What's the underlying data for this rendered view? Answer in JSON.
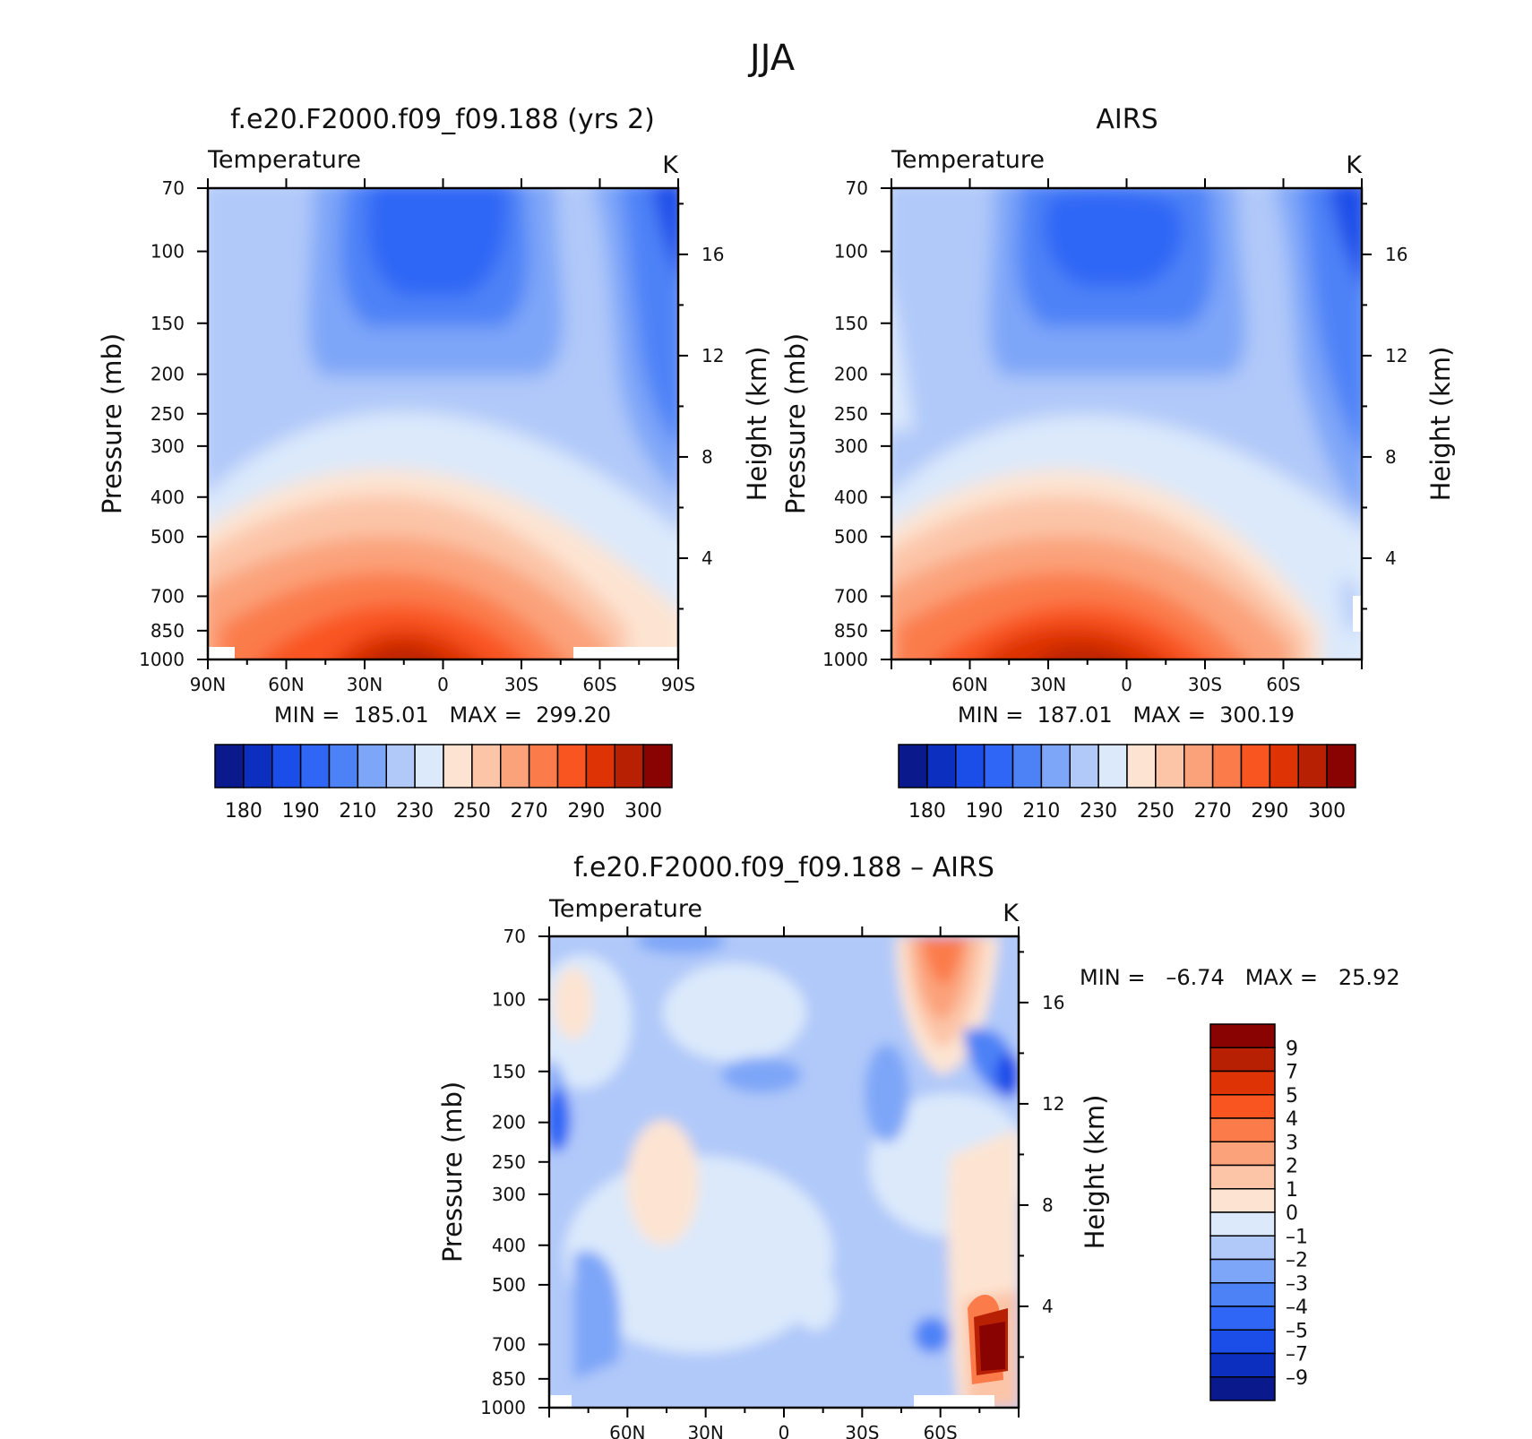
{
  "figure": {
    "title": "JJA"
  },
  "chart_data": [
    {
      "type": "heatmap",
      "title": "f.e20.F2000.f09_f09.188 (yrs 2)",
      "variable": "Temperature",
      "units": "K",
      "ylabel": "Pressure (mb)",
      "y2label": "Height (km)",
      "xlim": [
        90,
        -90
      ],
      "x_ticks": [
        90,
        60,
        30,
        0,
        -30,
        -60,
        -90
      ],
      "x_ticklabels": [
        "90N",
        "60N",
        "30N",
        "0",
        "30S",
        "60S",
        "90S"
      ],
      "y_ticks": [
        70,
        100,
        150,
        200,
        250,
        300,
        400,
        500,
        700,
        850,
        1000
      ],
      "y_ticklabels": [
        "70",
        "100",
        "150",
        "200",
        "250",
        "300",
        "400",
        "500",
        "700",
        "850",
        "1000"
      ],
      "y2_ticks": [
        4,
        8,
        12,
        16
      ],
      "y2_ticklabels": [
        "4",
        "8",
        "12",
        "16"
      ],
      "stats": "MIN =  185.01   MAX =  299.20",
      "min": 185.01,
      "max": 299.2,
      "colorbar_labels": [
        "180",
        "190",
        "210",
        "230",
        "250",
        "270",
        "290",
        "300"
      ],
      "colorbar_colors": [
        "#0a1a8c",
        "#0d2fc0",
        "#1b4de8",
        "#2f66f5",
        "#4d82f7",
        "#7ea6f8",
        "#b1c9f9",
        "#dbe9fb",
        "#fde4d2",
        "#fcc5a8",
        "#fba27a",
        "#fb7b4b",
        "#f95520",
        "#dd3305",
        "#b82004",
        "#8a0303"
      ]
    },
    {
      "type": "heatmap",
      "title": "AIRS",
      "variable": "Temperature",
      "units": "K",
      "ylabel": "Pressure (mb)",
      "y2label": "Height (km)",
      "xlim": [
        90,
        -90
      ],
      "x_ticks": [
        60,
        30,
        0,
        -30,
        -60
      ],
      "x_ticklabels": [
        "60N",
        "30N",
        "0",
        "30S",
        "60S"
      ],
      "y_ticks": [
        70,
        100,
        150,
        200,
        250,
        300,
        400,
        500,
        700,
        850,
        1000
      ],
      "y_ticklabels": [
        "70",
        "100",
        "150",
        "200",
        "250",
        "300",
        "400",
        "500",
        "700",
        "850",
        "1000"
      ],
      "y2_ticks": [
        4,
        8,
        12,
        16
      ],
      "y2_ticklabels": [
        "4",
        "8",
        "12",
        "16"
      ],
      "stats": "MIN =  187.01   MAX =  300.19",
      "min": 187.01,
      "max": 300.19,
      "colorbar_labels": [
        "180",
        "190",
        "210",
        "230",
        "250",
        "270",
        "290",
        "300"
      ],
      "colorbar_colors": [
        "#0a1a8c",
        "#0d2fc0",
        "#1b4de8",
        "#2f66f5",
        "#4d82f7",
        "#7ea6f8",
        "#b1c9f9",
        "#dbe9fb",
        "#fde4d2",
        "#fcc5a8",
        "#fba27a",
        "#fb7b4b",
        "#f95520",
        "#dd3305",
        "#b82004",
        "#8a0303"
      ]
    },
    {
      "type": "heatmap",
      "title": "f.e20.F2000.f09_f09.188 – AIRS",
      "variable": "Temperature",
      "units": "K",
      "ylabel": "Pressure (mb)",
      "y2label": "Height (km)",
      "xlim": [
        90,
        -90
      ],
      "x_ticks": [
        60,
        30,
        0,
        -30,
        -60
      ],
      "x_ticklabels": [
        "60N",
        "30N",
        "0",
        "30S",
        "60S"
      ],
      "y_ticks": [
        70,
        100,
        150,
        200,
        250,
        300,
        400,
        500,
        700,
        850,
        1000
      ],
      "y_ticklabels": [
        "70",
        "100",
        "150",
        "200",
        "250",
        "300",
        "400",
        "500",
        "700",
        "850",
        "1000"
      ],
      "y2_ticks": [
        4,
        8,
        12,
        16
      ],
      "y2_ticklabels": [
        "4",
        "8",
        "12",
        "16"
      ],
      "stats": "MIN =   –6.74   MAX =   25.92",
      "min": -6.74,
      "max": 25.92,
      "colorbar_labels": [
        "9",
        "7",
        "5",
        "4",
        "3",
        "2",
        "1",
        "0",
        "–1",
        "–2",
        "–3",
        "–4",
        "–5",
        "–7",
        "–9"
      ],
      "colorbar_colors": [
        "#8a0303",
        "#b82004",
        "#dd3305",
        "#f95520",
        "#fb7b4b",
        "#fba27a",
        "#fcc5a8",
        "#fde4d2",
        "#dbe9fb",
        "#b1c9f9",
        "#7ea6f8",
        "#4d82f7",
        "#2f66f5",
        "#1b4de8",
        "#0d2fc0",
        "#0a1a8c"
      ]
    }
  ]
}
